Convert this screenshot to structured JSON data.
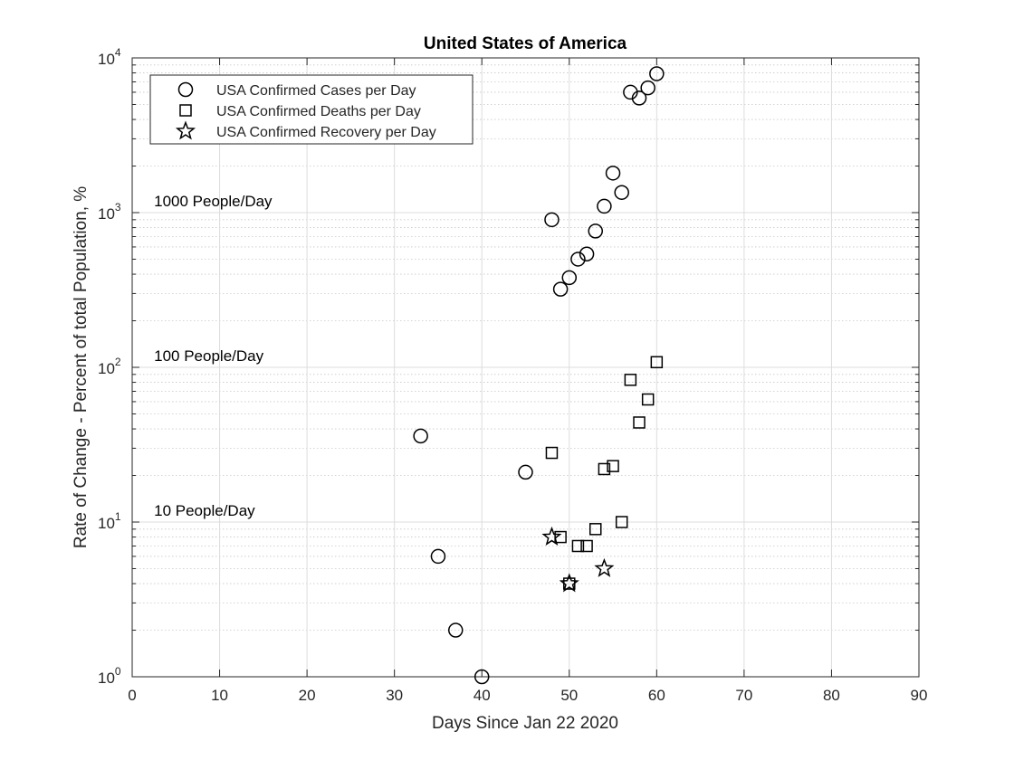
{
  "chart_data": {
    "type": "scatter",
    "title": "United States of America",
    "xlabel": "Days Since Jan 22 2020",
    "ylabel": "Rate of Change - Percent of total Population, %",
    "xlim": [
      0,
      90
    ],
    "ylim": [
      1,
      10000
    ],
    "yscale": "log",
    "grid": true,
    "minor_grid": true,
    "legend_position": "top-left",
    "x_ticks": [
      0,
      10,
      20,
      30,
      40,
      50,
      60,
      70,
      80,
      90
    ],
    "x_tick_labels": [
      "0",
      "10",
      "20",
      "30",
      "40",
      "50",
      "60",
      "70",
      "80",
      "90"
    ],
    "y_ticks": [
      1,
      10,
      100,
      1000,
      10000
    ],
    "y_tick_labels": [
      {
        "base": "10",
        "exp": "0"
      },
      {
        "base": "10",
        "exp": "1"
      },
      {
        "base": "10",
        "exp": "2"
      },
      {
        "base": "10",
        "exp": "3"
      },
      {
        "base": "10",
        "exp": "4"
      }
    ],
    "annotations": [
      {
        "text": "1000 People/Day",
        "x": 2.5,
        "y": 1000
      },
      {
        "text": "100 People/Day",
        "x": 2.5,
        "y": 100
      },
      {
        "text": "10 People/Day",
        "x": 2.5,
        "y": 10
      }
    ],
    "series": [
      {
        "name": "USA Confirmed Cases per Day",
        "marker": "circle",
        "points": [
          [
            33,
            36
          ],
          [
            35,
            6
          ],
          [
            37,
            2
          ],
          [
            40,
            1
          ],
          [
            45,
            21
          ],
          [
            48,
            900
          ],
          [
            49,
            320
          ],
          [
            50,
            380
          ],
          [
            51,
            500
          ],
          [
            52,
            540
          ],
          [
            53,
            760
          ],
          [
            54,
            1100
          ],
          [
            55,
            1800
          ],
          [
            56,
            1350
          ],
          [
            57,
            6000
          ],
          [
            58,
            5500
          ],
          [
            59,
            6400
          ],
          [
            60,
            7900
          ]
        ]
      },
      {
        "name": "USA Confirmed Deaths per Day",
        "marker": "square",
        "points": [
          [
            48,
            28
          ],
          [
            49,
            8
          ],
          [
            50,
            4
          ],
          [
            51,
            7
          ],
          [
            52,
            7
          ],
          [
            53,
            9
          ],
          [
            54,
            22
          ],
          [
            55,
            23
          ],
          [
            56,
            10
          ],
          [
            57,
            83
          ],
          [
            58,
            44
          ],
          [
            59,
            62
          ],
          [
            60,
            108
          ]
        ]
      },
      {
        "name": "USA Confirmed Recovery per Day",
        "marker": "star",
        "points": [
          [
            48,
            8
          ],
          [
            50,
            4
          ],
          [
            54,
            5
          ]
        ]
      }
    ]
  }
}
